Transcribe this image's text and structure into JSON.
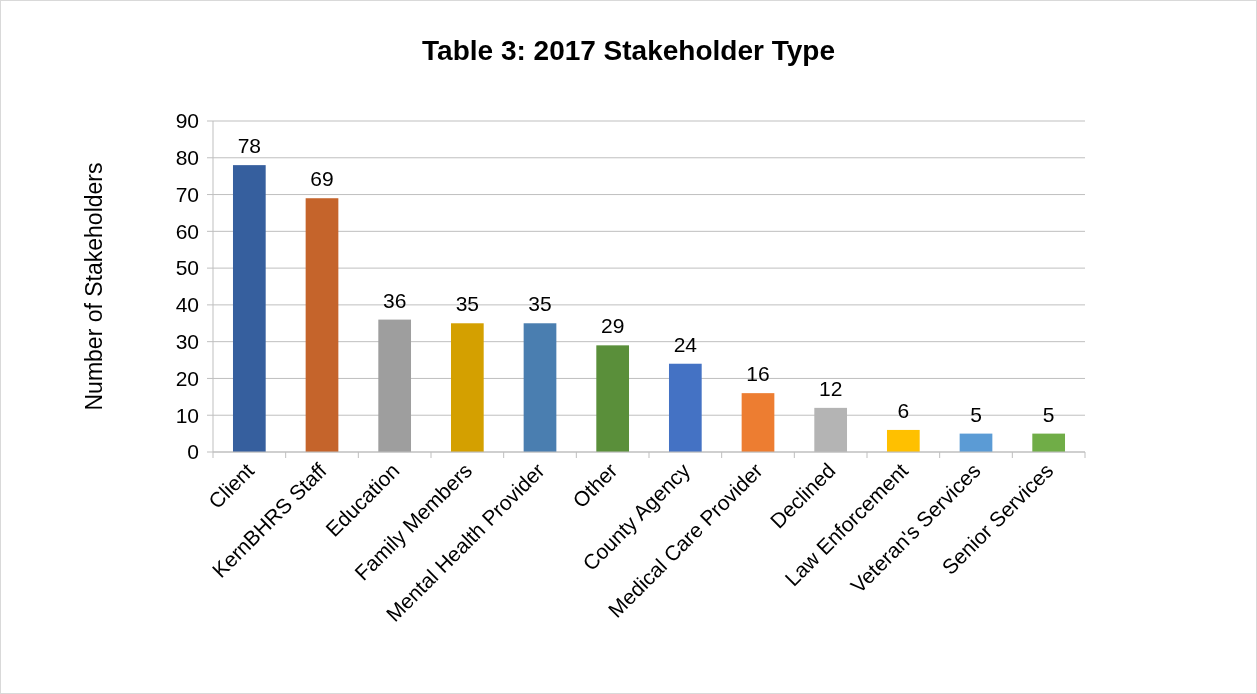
{
  "chart_data": {
    "type": "bar",
    "title": "Table 3:  2017 Stakeholder Type",
    "ylabel": "Number of Stakeholders",
    "categories": [
      "Client",
      "KernBHRS Staff",
      "Education",
      "Family Members",
      "Mental Health Provider",
      "Other",
      "County Agency",
      "Medical Care Provider",
      "Declined",
      "Law Enforcement",
      "Veteran's Services",
      "Senior Services"
    ],
    "values": [
      78,
      69,
      36,
      35,
      35,
      29,
      24,
      16,
      12,
      6,
      5,
      5
    ],
    "colors": [
      "#365f9e",
      "#c5642b",
      "#9e9e9e",
      "#d4a000",
      "#4a7eb0",
      "#5a8f3a",
      "#4472c4",
      "#ed7d31",
      "#b4b4b4",
      "#ffc000",
      "#5b9bd5",
      "#70ad47"
    ],
    "ylim": [
      0,
      90
    ],
    "yticks": [
      0,
      10,
      20,
      30,
      40,
      50,
      60,
      70,
      80,
      90
    ],
    "grid": "y",
    "data_labels": true
  }
}
